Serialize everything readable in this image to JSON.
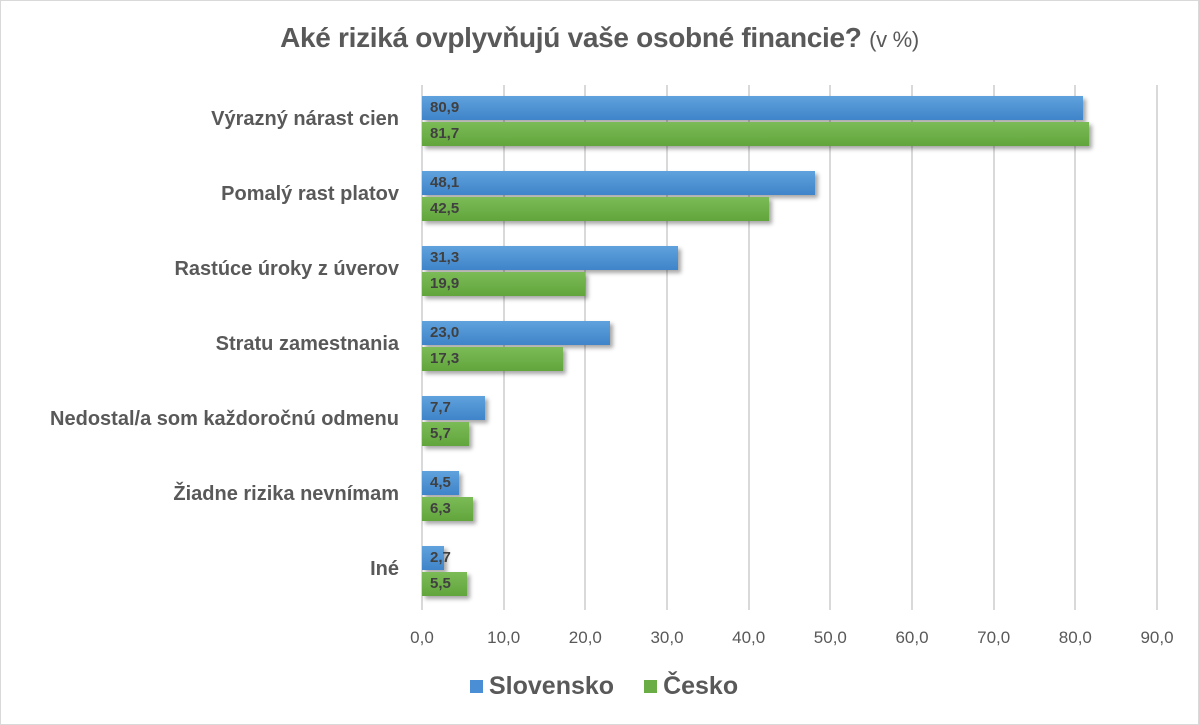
{
  "chart_data": {
    "type": "bar",
    "orientation": "horizontal",
    "title": "Aké riziká ovplyvňujú vaše osobné financie?",
    "subtitle": "(v %)",
    "xlabel": "",
    "ylabel": "",
    "xlim": [
      0,
      90
    ],
    "x_ticks": [
      "0,0",
      "10,0",
      "20,0",
      "30,0",
      "40,0",
      "50,0",
      "60,0",
      "70,0",
      "80,0",
      "90,0"
    ],
    "grid": true,
    "legend_position": "bottom",
    "categories": [
      "Výrazný nárast cien",
      "Pomalý rast platov",
      "Rastúce úroky z úverov",
      "Stratu zamestnania",
      "Nedostal/a som každoročnú odmenu",
      "Žiadne rizika nevnímam",
      "Iné"
    ],
    "series": [
      {
        "name": "Slovensko",
        "color": "#4a8fd6",
        "values": [
          80.9,
          48.1,
          31.3,
          23.0,
          7.7,
          4.5,
          2.7
        ],
        "labels": [
          "80,9",
          "48,1",
          "31,3",
          "23,0",
          "7,7",
          "4,5",
          "2,7"
        ]
      },
      {
        "name": "Česko",
        "color": "#6aad45",
        "values": [
          81.7,
          42.5,
          19.9,
          17.3,
          5.7,
          6.3,
          5.5
        ],
        "labels": [
          "81,7",
          "42,5",
          "19,9",
          "17,3",
          "5,7",
          "6,3",
          "5,5"
        ]
      }
    ]
  },
  "title": {
    "main": "Aké riziká ovplyvňujú vaše osobné financie?",
    "unit": "(v %)"
  },
  "legend": [
    {
      "label": "Slovensko",
      "color": "#4a8fd6"
    },
    {
      "label": "Česko",
      "color": "#6aad45"
    }
  ]
}
